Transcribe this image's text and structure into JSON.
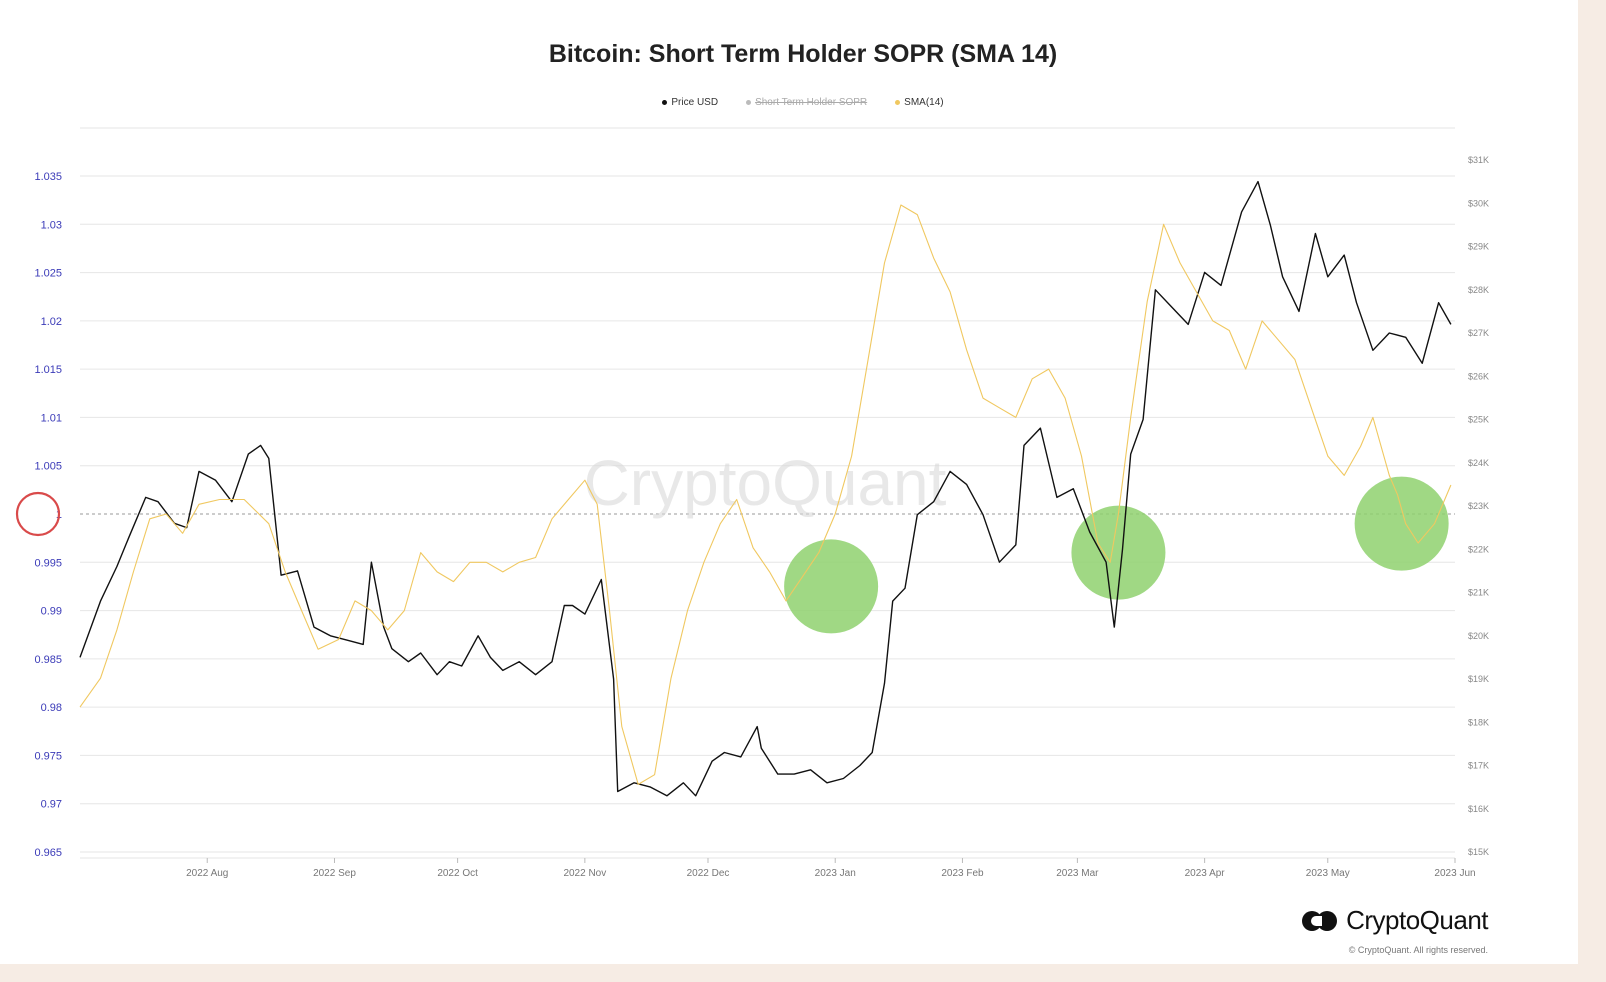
{
  "colors": {
    "price": "#111111",
    "sopr_raw": "#bbbbbb",
    "sma": "#f0c860",
    "highlight": "#8fd16e",
    "marker": "#d94a4a",
    "left_axis": "#3b3bb8",
    "right_axis": "#888888",
    "grid": "#e6e6e6"
  },
  "branding": {
    "watermark": "CryptoQuant",
    "logo_text": "CryptoQuant",
    "copyright": "© CryptoQuant. All rights reserved."
  },
  "chart_data": {
    "type": "line",
    "title": "Bitcoin: Short Term Holder SOPR (SMA 14)",
    "legend": [
      {
        "name": "Price USD",
        "enabled": true,
        "color": "#111111"
      },
      {
        "name": "Short Term Holder SOPR",
        "enabled": false,
        "color": "#bbbbbb"
      },
      {
        "name": "SMA(14)",
        "enabled": true,
        "color": "#f0c860"
      }
    ],
    "legend_position": "top-center",
    "x_range": [
      "2022-07-01",
      "2023-06-01"
    ],
    "x_ticks": [
      {
        "date": "2022-08-01",
        "label": "2022 Aug"
      },
      {
        "date": "2022-09-01",
        "label": "2022 Sep"
      },
      {
        "date": "2022-10-01",
        "label": "2022 Oct"
      },
      {
        "date": "2022-11-01",
        "label": "2022 Nov"
      },
      {
        "date": "2022-12-01",
        "label": "2022 Dec"
      },
      {
        "date": "2023-01-01",
        "label": "2023 Jan"
      },
      {
        "date": "2023-02-01",
        "label": "2023 Feb"
      },
      {
        "date": "2023-03-01",
        "label": "2023 Mar"
      },
      {
        "date": "2023-04-01",
        "label": "2023 Apr"
      },
      {
        "date": "2023-05-01",
        "label": "2023 May"
      },
      {
        "date": "2023-06-01",
        "label": "2023 Jun"
      }
    ],
    "y_left": {
      "range": [
        0.965,
        1.035
      ],
      "ticks": [
        1.035,
        1.03,
        1.025,
        1.02,
        1.015,
        1.01,
        1.005,
        1,
        0.995,
        0.99,
        0.985,
        0.98,
        0.975,
        0.97,
        0.965
      ],
      "tick_labels": [
        "1.035",
        "1.03",
        "1.025",
        "1.02",
        "1.015",
        "1.01",
        "1.005",
        "1",
        "0.995",
        "0.99",
        "0.985",
        "0.98",
        "0.975",
        "0.97",
        "0.965"
      ],
      "reference_line": 1
    },
    "y_right": {
      "range": [
        15000,
        31000
      ],
      "ticks": [
        31000,
        30000,
        29000,
        28000,
        27000,
        26000,
        25000,
        24000,
        23000,
        22000,
        21000,
        20000,
        19000,
        18000,
        17000,
        16000,
        15000
      ],
      "tick_labels": [
        "$31K",
        "$30K",
        "$29K",
        "$28K",
        "$27K",
        "$26K",
        "$25K",
        "$24K",
        "$23K",
        "$22K",
        "$21K",
        "$20K",
        "$19K",
        "$18K",
        "$17K",
        "$16K",
        "$15K"
      ]
    },
    "grid": true,
    "series": [
      {
        "name": "Price USD",
        "axis": "right",
        "x": [
          "2022-07-01",
          "2022-07-06",
          "2022-07-10",
          "2022-07-13",
          "2022-07-17",
          "2022-07-20",
          "2022-07-24",
          "2022-07-27",
          "2022-07-30",
          "2022-08-03",
          "2022-08-07",
          "2022-08-11",
          "2022-08-14",
          "2022-08-16",
          "2022-08-19",
          "2022-08-23",
          "2022-08-27",
          "2022-08-31",
          "2022-09-04",
          "2022-09-08",
          "2022-09-10",
          "2022-09-13",
          "2022-09-15",
          "2022-09-19",
          "2022-09-22",
          "2022-09-26",
          "2022-09-29",
          "2022-10-02",
          "2022-10-06",
          "2022-10-09",
          "2022-10-12",
          "2022-10-16",
          "2022-10-20",
          "2022-10-24",
          "2022-10-27",
          "2022-10-29",
          "2022-11-01",
          "2022-11-05",
          "2022-11-08",
          "2022-11-09",
          "2022-11-13",
          "2022-11-17",
          "2022-11-21",
          "2022-11-25",
          "2022-11-28",
          "2022-12-02",
          "2022-12-05",
          "2022-12-09",
          "2022-12-13",
          "2022-12-14",
          "2022-12-18",
          "2022-12-22",
          "2022-12-26",
          "2022-12-30",
          "2023-01-03",
          "2023-01-07",
          "2023-01-10",
          "2023-01-13",
          "2023-01-15",
          "2023-01-18",
          "2023-01-21",
          "2023-01-25",
          "2023-01-29",
          "2023-02-02",
          "2023-02-06",
          "2023-02-10",
          "2023-02-14",
          "2023-02-16",
          "2023-02-20",
          "2023-02-24",
          "2023-02-28",
          "2023-03-04",
          "2023-03-08",
          "2023-03-10",
          "2023-03-12",
          "2023-03-14",
          "2023-03-17",
          "2023-03-20",
          "2023-03-24",
          "2023-03-28",
          "2023-04-01",
          "2023-04-05",
          "2023-04-10",
          "2023-04-14",
          "2023-04-17",
          "2023-04-20",
          "2023-04-24",
          "2023-04-28",
          "2023-05-01",
          "2023-05-05",
          "2023-05-08",
          "2023-05-12",
          "2023-05-16",
          "2023-05-20",
          "2023-05-24",
          "2023-05-28",
          "2023-05-31"
        ],
        "values": [
          19500,
          20800,
          21600,
          22300,
          23200,
          23100,
          22600,
          22500,
          23800,
          23600,
          23100,
          24200,
          24400,
          24100,
          21400,
          21500,
          20200,
          20000,
          19900,
          19800,
          21700,
          20200,
          19700,
          19400,
          19600,
          19100,
          19400,
          19300,
          20000,
          19500,
          19200,
          19400,
          19100,
          19400,
          20700,
          20700,
          20500,
          21300,
          19000,
          16400,
          16600,
          16500,
          16300,
          16600,
          16300,
          17100,
          17300,
          17200,
          17900,
          17400,
          16800,
          16800,
          16900,
          16600,
          16700,
          17000,
          17300,
          18900,
          20800,
          21100,
          22800,
          23100,
          23800,
          23500,
          22800,
          21700,
          22100,
          24400,
          24800,
          23200,
          23400,
          22400,
          21700,
          20200,
          22000,
          24200,
          25000,
          28000,
          27600,
          27200,
          28400,
          28100,
          29800,
          30500,
          29500,
          28300,
          27500,
          29300,
          28300,
          28800,
          27700,
          26600,
          27000,
          26900,
          26300,
          27700,
          27200
        ]
      },
      {
        "name": "SMA(14)",
        "axis": "left",
        "x": [
          "2022-07-01",
          "2022-07-06",
          "2022-07-10",
          "2022-07-14",
          "2022-07-18",
          "2022-07-22",
          "2022-07-26",
          "2022-07-30",
          "2022-08-04",
          "2022-08-10",
          "2022-08-16",
          "2022-08-20",
          "2022-08-24",
          "2022-08-28",
          "2022-09-02",
          "2022-09-06",
          "2022-09-10",
          "2022-09-14",
          "2022-09-18",
          "2022-09-22",
          "2022-09-26",
          "2022-09-30",
          "2022-10-04",
          "2022-10-08",
          "2022-10-12",
          "2022-10-16",
          "2022-10-20",
          "2022-10-24",
          "2022-10-28",
          "2022-11-01",
          "2022-11-04",
          "2022-11-07",
          "2022-11-10",
          "2022-11-14",
          "2022-11-18",
          "2022-11-22",
          "2022-11-26",
          "2022-11-30",
          "2022-12-04",
          "2022-12-08",
          "2022-12-12",
          "2022-12-16",
          "2022-12-20",
          "2022-12-24",
          "2022-12-28",
          "2023-01-01",
          "2023-01-05",
          "2023-01-09",
          "2023-01-13",
          "2023-01-17",
          "2023-01-21",
          "2023-01-25",
          "2023-01-29",
          "2023-02-02",
          "2023-02-06",
          "2023-02-10",
          "2023-02-14",
          "2023-02-18",
          "2023-02-22",
          "2023-02-26",
          "2023-03-02",
          "2023-03-06",
          "2023-03-09",
          "2023-03-11",
          "2023-03-14",
          "2023-03-18",
          "2023-03-22",
          "2023-03-26",
          "2023-03-30",
          "2023-04-03",
          "2023-04-07",
          "2023-04-11",
          "2023-04-15",
          "2023-04-19",
          "2023-04-23",
          "2023-04-27",
          "2023-05-01",
          "2023-05-05",
          "2023-05-09",
          "2023-05-12",
          "2023-05-16",
          "2023-05-18",
          "2023-05-20",
          "2023-05-23",
          "2023-05-27",
          "2023-05-31"
        ],
        "values": [
          0.98,
          0.983,
          0.988,
          0.994,
          0.9995,
          1.0,
          0.998,
          1.001,
          1.0015,
          1.0015,
          0.999,
          0.994,
          0.99,
          0.986,
          0.987,
          0.991,
          0.99,
          0.988,
          0.99,
          0.996,
          0.994,
          0.993,
          0.995,
          0.995,
          0.994,
          0.995,
          0.9955,
          0.9995,
          1.0015,
          1.0035,
          1.001,
          0.99,
          0.978,
          0.972,
          0.973,
          0.983,
          0.99,
          0.995,
          0.999,
          1.0015,
          0.9965,
          0.994,
          0.991,
          0.9935,
          0.996,
          1.0,
          1.006,
          1.016,
          1.026,
          1.032,
          1.031,
          1.0265,
          1.023,
          1.017,
          1.012,
          1.011,
          1.01,
          1.014,
          1.015,
          1.012,
          1.006,
          0.997,
          0.995,
          1.0,
          1.01,
          1.022,
          1.03,
          1.026,
          1.023,
          1.02,
          1.019,
          1.015,
          1.02,
          1.018,
          1.016,
          1.011,
          1.006,
          1.004,
          1.007,
          1.01,
          1.004,
          1.002,
          0.999,
          0.997,
          0.999,
          1.003
        ]
      }
    ],
    "annotations": [
      {
        "type": "circle-marker",
        "axis": "left",
        "value": 1,
        "note": "red circle around the 1 tick"
      },
      {
        "type": "highlight-circle",
        "center_date": "2022-12-31",
        "center_value": 0.9925
      },
      {
        "type": "highlight-circle",
        "center_date": "2023-03-11",
        "center_value": 0.996
      },
      {
        "type": "highlight-circle",
        "center_date": "2023-05-19",
        "center_value": 0.999
      }
    ]
  }
}
